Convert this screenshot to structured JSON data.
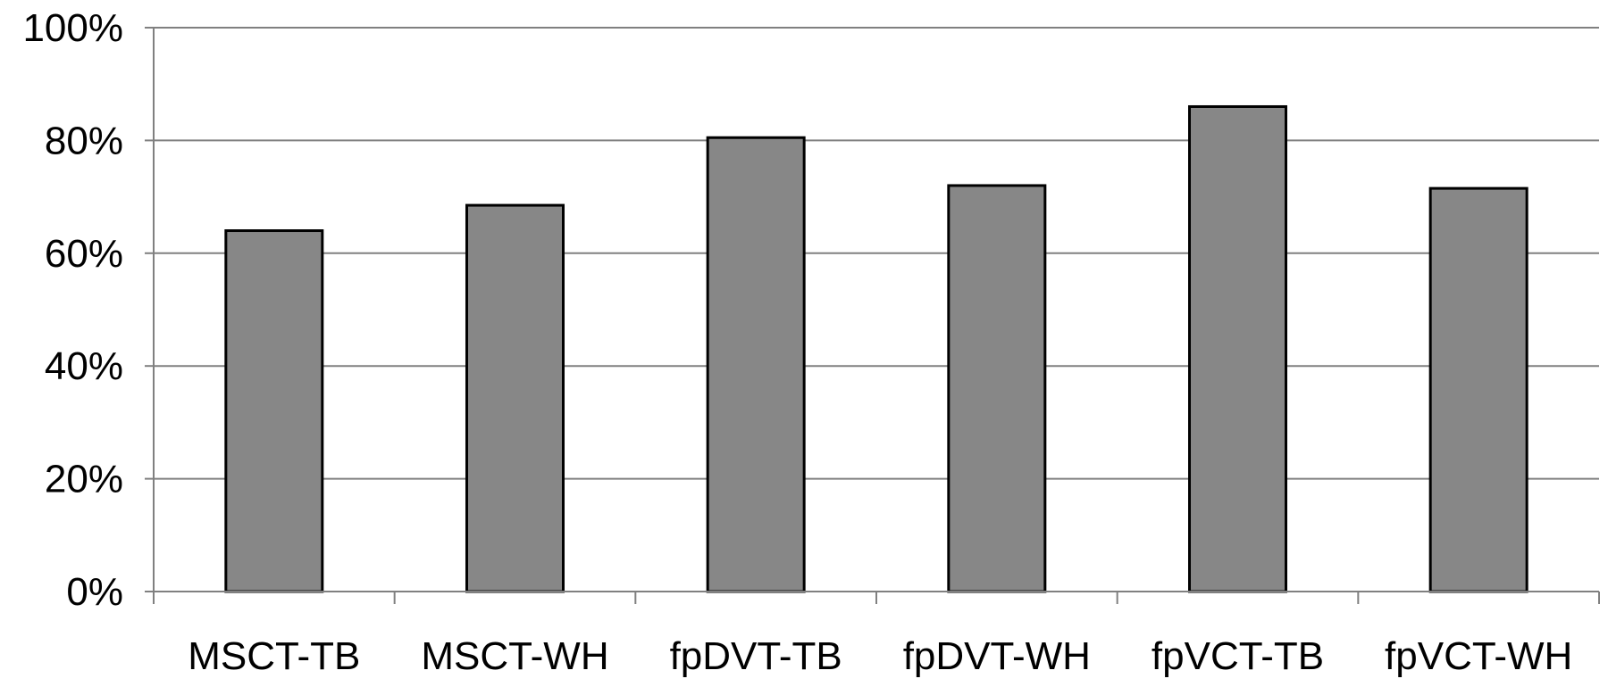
{
  "chart_data": {
    "type": "bar",
    "categories": [
      "MSCT-TB",
      "MSCT-WH",
      "fpDVT-TB",
      "fpDVT-WH",
      "fpVCT-TB",
      "fpVCT-WH"
    ],
    "values": [
      64,
      68.5,
      80.5,
      72,
      86,
      71.5
    ],
    "ylim": [
      0,
      100
    ],
    "yticks": [
      "0%",
      "20%",
      "40%",
      "60%",
      "80%",
      "100%"
    ],
    "ytick_values": [
      0,
      20,
      40,
      60,
      80,
      100
    ],
    "grid": true,
    "legend": "none",
    "colors": {
      "bar_fill": "#878787",
      "bar_stroke": "#000000",
      "grid": "#808080",
      "axis": "#808080"
    }
  }
}
